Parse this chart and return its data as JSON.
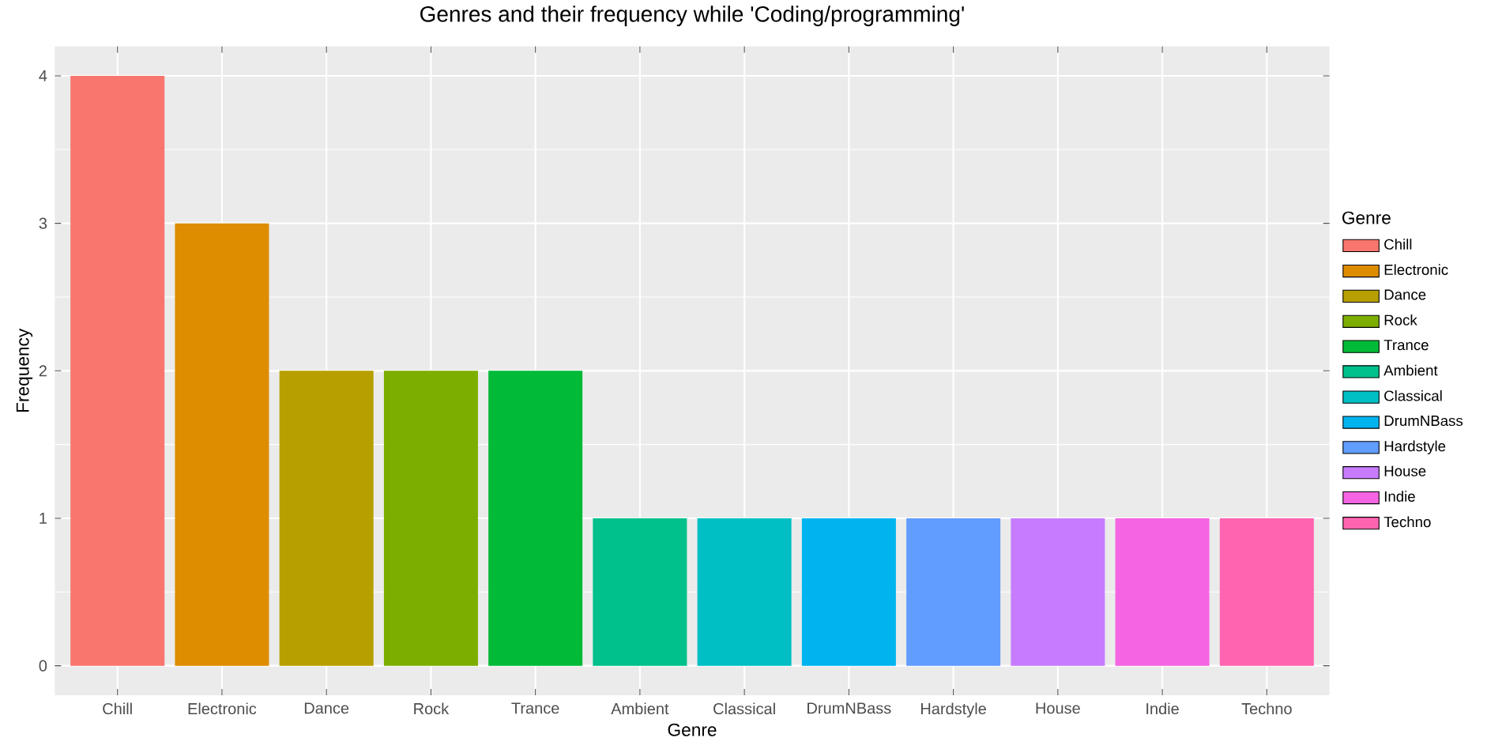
{
  "chart_data": {
    "type": "bar",
    "title": "Genres and their frequency while 'Coding/programming'",
    "xlabel": "Genre",
    "ylabel": "Frequency",
    "legend_title": "Genre",
    "categories": [
      "Chill",
      "Electronic",
      "Dance",
      "Rock",
      "Trance",
      "Ambient",
      "Classical",
      "DrumNBass",
      "Hardstyle",
      "House",
      "Indie",
      "Techno"
    ],
    "series": [
      {
        "name": "Chill",
        "color": "#f8766d",
        "values": [
          4,
          null,
          null,
          null,
          null,
          null,
          null,
          null,
          null,
          null,
          null,
          null
        ]
      },
      {
        "name": "Electronic",
        "color": "#de8c00",
        "values": [
          null,
          3,
          null,
          null,
          null,
          null,
          null,
          null,
          null,
          null,
          null,
          null
        ]
      },
      {
        "name": "Dance",
        "color": "#b79f00",
        "values": [
          null,
          null,
          2,
          null,
          null,
          null,
          null,
          null,
          null,
          null,
          null,
          null
        ]
      },
      {
        "name": "Rock",
        "color": "#7cae00",
        "values": [
          null,
          null,
          null,
          2,
          null,
          null,
          null,
          null,
          null,
          null,
          null,
          null
        ]
      },
      {
        "name": "Trance",
        "color": "#00ba38",
        "values": [
          null,
          null,
          null,
          null,
          2,
          null,
          null,
          null,
          null,
          null,
          null,
          null
        ]
      },
      {
        "name": "Ambient",
        "color": "#00c08b",
        "values": [
          null,
          null,
          null,
          null,
          null,
          1,
          null,
          null,
          null,
          null,
          null,
          null
        ]
      },
      {
        "name": "Classical",
        "color": "#00bfc4",
        "values": [
          null,
          null,
          null,
          null,
          null,
          null,
          1,
          null,
          null,
          null,
          null,
          null
        ]
      },
      {
        "name": "DrumNBass",
        "color": "#00b4f0",
        "values": [
          null,
          null,
          null,
          null,
          null,
          null,
          null,
          1,
          null,
          null,
          null,
          null
        ]
      },
      {
        "name": "Hardstyle",
        "color": "#619cff",
        "values": [
          null,
          null,
          null,
          null,
          null,
          null,
          null,
          null,
          1,
          null,
          null,
          null
        ]
      },
      {
        "name": "House",
        "color": "#c77cff",
        "values": [
          null,
          null,
          null,
          null,
          null,
          null,
          null,
          null,
          null,
          1,
          null,
          null
        ]
      },
      {
        "name": "Indie",
        "color": "#f564e3",
        "values": [
          null,
          null,
          null,
          null,
          null,
          null,
          null,
          null,
          null,
          null,
          1,
          null
        ]
      },
      {
        "name": "Techno",
        "color": "#ff64b0",
        "values": [
          null,
          null,
          null,
          null,
          null,
          null,
          null,
          null,
          null,
          null,
          null,
          1
        ]
      }
    ],
    "ylim": [
      -0.2,
      4.2
    ],
    "yticks": [
      0,
      1,
      2,
      3,
      4
    ],
    "grid": true,
    "legend": "right"
  }
}
